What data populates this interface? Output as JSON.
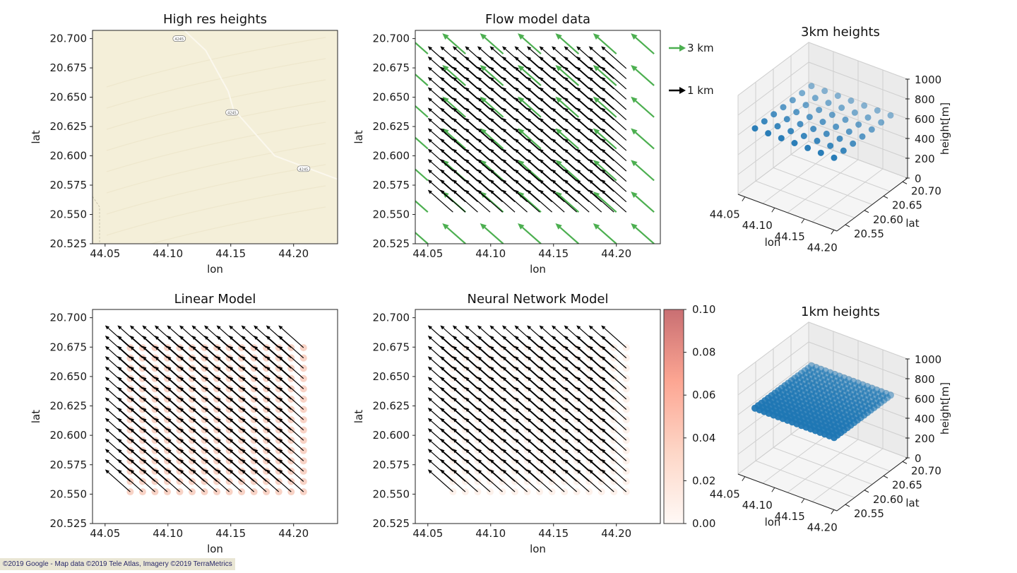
{
  "chart_data": [
    {
      "id": "high-res",
      "type": "image",
      "title": "High res heights",
      "xlabel": "lon",
      "ylabel": "lat",
      "xlim": [
        44.04,
        44.235
      ],
      "ylim": [
        20.525,
        20.707
      ],
      "xticks": [
        "44.05",
        "44.10",
        "44.15",
        "44.20"
      ],
      "yticks": [
        "20.700",
        "20.675",
        "20.650",
        "20.625",
        "20.600",
        "20.575",
        "20.550",
        "20.525"
      ],
      "map": {
        "background": "#f4efd9",
        "road_color": "#fbf8ee",
        "road_labels": [
          "4245",
          "4245",
          "4245"
        ],
        "road": [
          [
            44.113,
            20.707
          ],
          [
            44.13,
            20.69
          ],
          [
            44.148,
            20.655
          ],
          [
            44.152,
            20.64
          ],
          [
            44.185,
            20.6
          ],
          [
            44.235,
            20.58
          ]
        ],
        "label_points": [
          [
            44.109,
            20.7
          ],
          [
            44.151,
            20.637
          ],
          [
            44.208,
            20.589
          ]
        ]
      }
    },
    {
      "id": "flow",
      "type": "quiver",
      "title": "Flow model data",
      "xlabel": "lon",
      "ylabel": "lat",
      "xlim": [
        44.04,
        44.235
      ],
      "ylim": [
        20.525,
        20.707
      ],
      "xticks": [
        "44.05",
        "44.10",
        "44.15",
        "44.20"
      ],
      "yticks": [
        "20.700",
        "20.675",
        "20.650",
        "20.625",
        "20.600",
        "20.575",
        "20.550",
        "20.525"
      ],
      "legend": [
        {
          "label": "3 km",
          "color": "#4caf50"
        },
        {
          "label": "1 km",
          "color": "#000000"
        }
      ],
      "series": [
        {
          "name": "3 km",
          "color": "#4caf50",
          "x0": 44.05,
          "dx": 0.03,
          "nx": 7,
          "y0": 20.525,
          "dy": 0.027,
          "ny": 7,
          "u": -0.0185,
          "v": 0.0175
        },
        {
          "name": "1 km",
          "color": "#000000",
          "x0": 44.07,
          "dx": 0.00985,
          "nx": 15,
          "y0": 20.552,
          "dy": 0.00875,
          "ny": 15,
          "u": -0.02,
          "v": 0.019
        }
      ]
    },
    {
      "id": "h3",
      "type": "scatter3d",
      "title": "3km heights",
      "xlabel": "lon",
      "ylabel": "lat",
      "zlabel": "height[m]",
      "xticks": [
        "44.05",
        "44.10",
        "44.15",
        "44.20"
      ],
      "yticks": [
        "20.55",
        "20.60",
        "20.65",
        "20.70"
      ],
      "zticks": [
        "0",
        "200",
        "400",
        "600",
        "800",
        "1000"
      ],
      "zlim": [
        0,
        1000
      ],
      "grid": {
        "nx": 7,
        "ny": 7,
        "z": 650
      },
      "color": "#1f77b4"
    },
    {
      "id": "linear",
      "type": "quiver",
      "title": "Linear Model",
      "xlabel": "lon",
      "ylabel": "lat",
      "xlim": [
        44.04,
        44.235
      ],
      "ylim": [
        20.525,
        20.707
      ],
      "xticks": [
        "44.05",
        "44.10",
        "44.15",
        "44.20"
      ],
      "yticks": [
        "20.700",
        "20.675",
        "20.650",
        "20.625",
        "20.600",
        "20.575",
        "20.550",
        "20.525"
      ],
      "series": [
        {
          "name": "1 km",
          "color": "#000000",
          "x0": 44.07,
          "dx": 0.00985,
          "nx": 15,
          "y0": 20.552,
          "dy": 0.00875,
          "ny": 15,
          "u": -0.02,
          "v": 0.019
        }
      ],
      "error_markers": {
        "color": "#f4b6a0",
        "opacity": 0.6
      }
    },
    {
      "id": "nn",
      "type": "quiver",
      "title": "Neural Network Model",
      "xlabel": "lon",
      "ylabel": "lat",
      "xlim": [
        44.04,
        44.235
      ],
      "ylim": [
        20.525,
        20.707
      ],
      "xticks": [
        "44.05",
        "44.10",
        "44.15",
        "44.20"
      ],
      "yticks": [
        "20.700",
        "20.675",
        "20.650",
        "20.625",
        "20.600",
        "20.575",
        "20.550",
        "20.525"
      ],
      "series": [
        {
          "name": "1 km",
          "color": "#000000",
          "x0": 44.07,
          "dx": 0.00985,
          "nx": 15,
          "y0": 20.552,
          "dy": 0.00875,
          "ny": 15,
          "u": -0.02,
          "v": 0.019
        }
      ],
      "error_markers": {
        "color": "#fbe3d8",
        "opacity": 0.5
      },
      "colorbar": {
        "ticks": [
          "0.00",
          "0.02",
          "0.04",
          "0.06",
          "0.08",
          "0.10"
        ],
        "range": [
          0,
          0.1
        ],
        "colors": [
          "#fff5f0",
          "#fcbba1",
          "#fb6a4a",
          "#a50f15"
        ]
      }
    },
    {
      "id": "h1",
      "type": "scatter3d",
      "title": "1km heights",
      "xlabel": "lon",
      "ylabel": "lat",
      "zlabel": "height[m]",
      "xticks": [
        "44.05",
        "44.10",
        "44.15",
        "44.20"
      ],
      "yticks": [
        "20.55",
        "20.60",
        "20.65",
        "20.70"
      ],
      "zticks": [
        "0",
        "200",
        "400",
        "600",
        "800",
        "1000"
      ],
      "zlim": [
        0,
        1000
      ],
      "grid": {
        "nx": 18,
        "ny": 18,
        "z": 650
      },
      "color": "#1f77b4"
    }
  ],
  "credit": "©2019 Google - Map data ©2019 Tele Atlas, Imagery ©2019 TerraMetrics"
}
